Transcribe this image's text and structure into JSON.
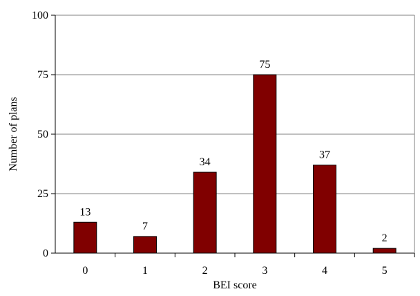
{
  "chart_data": {
    "type": "bar",
    "categories": [
      "0",
      "1",
      "2",
      "3",
      "4",
      "5"
    ],
    "values": [
      13,
      7,
      34,
      75,
      37,
      2
    ],
    "data_labels": [
      "13",
      "7",
      "34",
      "75",
      "37",
      "2"
    ],
    "title": "",
    "xlabel": "BEI score",
    "ylabel": "Number of plans",
    "ylim": [
      0,
      100
    ],
    "yticks": [
      0,
      25,
      50,
      75,
      100
    ],
    "ytick_labels": [
      "0",
      "25",
      "50",
      "75",
      "100"
    ],
    "grid": "horizontal",
    "legend": "none",
    "bar_color": "#800000",
    "grid_color": "#808080"
  }
}
